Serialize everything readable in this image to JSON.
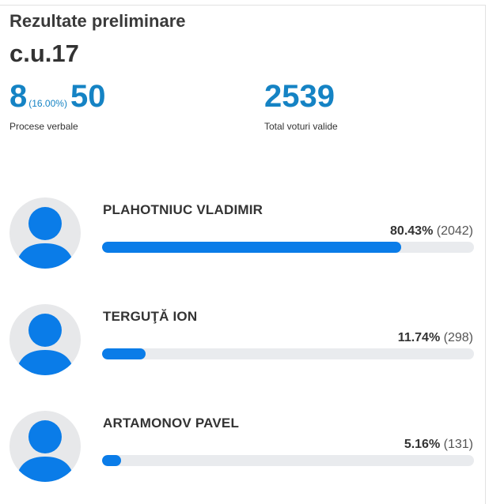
{
  "header": {
    "title": "Rezultate preliminare",
    "district": "c.u.17"
  },
  "stats": {
    "processed": "8",
    "processed_percent": "(16.00%)",
    "total_protocols": "50",
    "protocols_label": "Procese verbale",
    "valid_votes": "2539",
    "valid_votes_label": "Total voturi valide"
  },
  "colors": {
    "accent": "#1583c4",
    "bar_fill": "#0a7ce8",
    "bar_track": "#e9ebee",
    "avatar_bg": "#e7e8ea",
    "avatar_figure": "#0a7ce8"
  },
  "candidates": [
    {
      "name": "PLAHOTNIUC VLADIMIR",
      "percent_label": "80.43%",
      "votes_label": "(2042)",
      "share": 80.43,
      "icon": "user-avatar-icon"
    },
    {
      "name": "TERGUŢĂ ION",
      "percent_label": "11.74%",
      "votes_label": "(298)",
      "share": 11.74,
      "icon": "user-avatar-icon"
    },
    {
      "name": "ARTAMONOV PAVEL",
      "percent_label": "5.16%",
      "votes_label": "(131)",
      "share": 5.16,
      "icon": "user-avatar-icon"
    }
  ]
}
